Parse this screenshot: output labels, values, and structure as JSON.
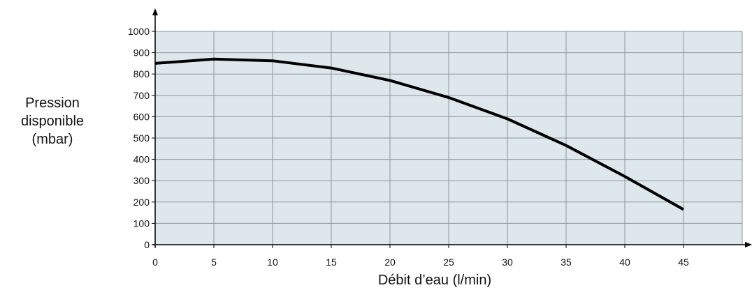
{
  "chart_data": {
    "type": "line",
    "title": "",
    "xlabel": "Débit d’eau (l/min)",
    "ylabel_lines": [
      "Pression",
      "disponible",
      "(mbar)"
    ],
    "xlim": [
      0,
      50
    ],
    "ylim": [
      0,
      1000
    ],
    "x_ticks": [
      0,
      5,
      10,
      15,
      20,
      25,
      30,
      35,
      40,
      45
    ],
    "y_ticks": [
      0,
      100,
      200,
      300,
      400,
      500,
      600,
      700,
      800,
      900,
      1000
    ],
    "grid": true,
    "series": [
      {
        "x": [
          0,
          5,
          10,
          15,
          20,
          25,
          30,
          35,
          40,
          45
        ],
        "y": [
          850,
          870,
          862,
          828,
          770,
          690,
          590,
          465,
          320,
          165
        ]
      }
    ],
    "colors": {
      "plot_bg": "#dde7ec",
      "grid": "#8d969b",
      "line": "#000000",
      "axis": "#000000"
    }
  }
}
